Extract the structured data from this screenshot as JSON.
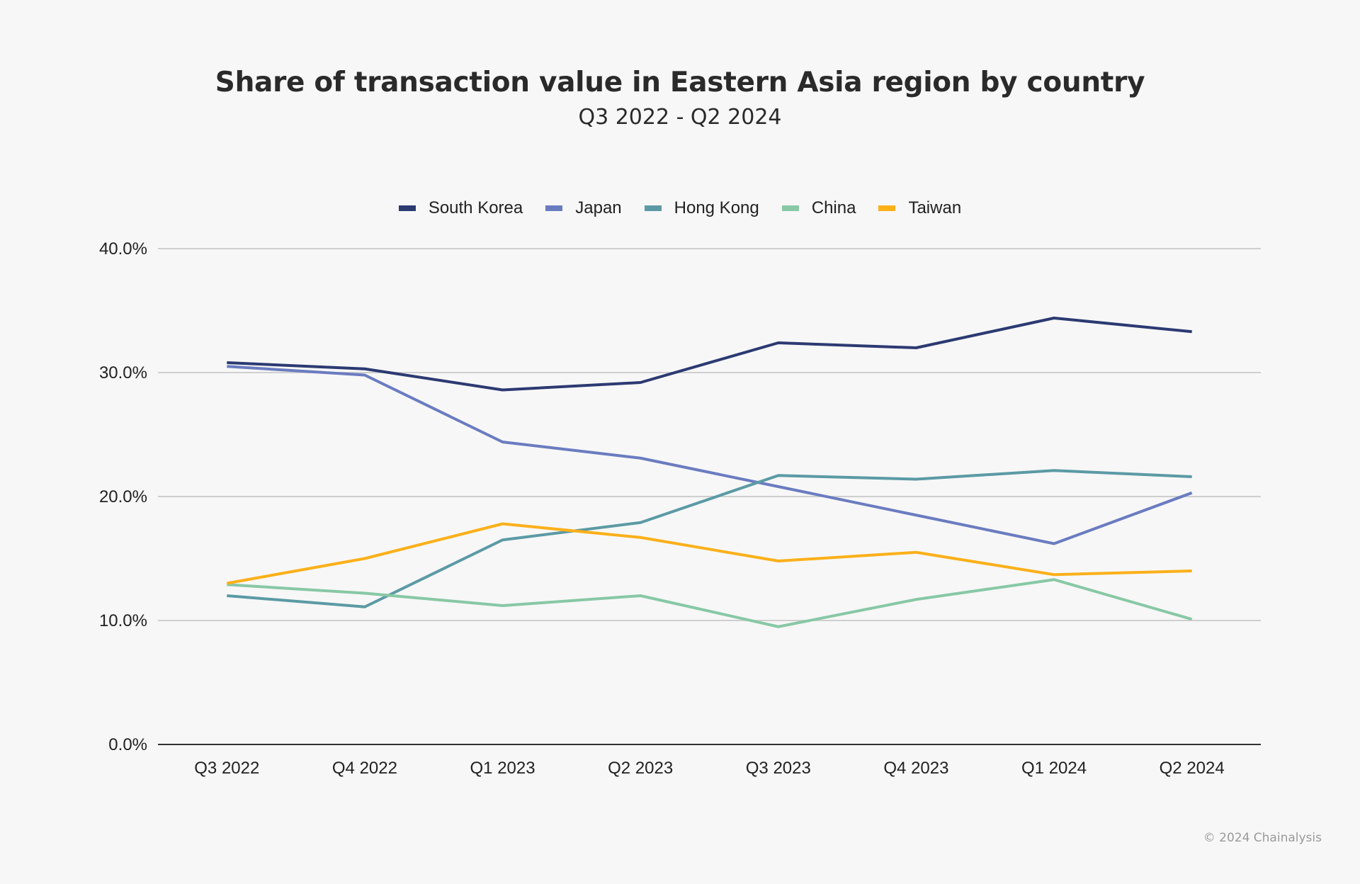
{
  "chart_data": {
    "type": "line",
    "title": "Share of transaction value in Eastern Asia region by country",
    "subtitle": "Q3 2022 - Q2 2024",
    "xlabel": "",
    "ylabel": "",
    "categories": [
      "Q3 2022",
      "Q4 2022",
      "Q1 2023",
      "Q2 2023",
      "Q3 2023",
      "Q4 2023",
      "Q1 2024",
      "Q2 2024"
    ],
    "ylim": [
      0,
      40
    ],
    "yticks": [
      0,
      10,
      20,
      30,
      40
    ],
    "ytick_labels": [
      "0.0%",
      "10.0%",
      "20.0%",
      "30.0%",
      "40.0%"
    ],
    "grid": true,
    "legend_position": "top-center",
    "series": [
      {
        "name": "South Korea",
        "color": "#2c3a72",
        "values": [
          30.8,
          30.3,
          28.6,
          29.2,
          32.4,
          32.0,
          34.4,
          33.3
        ]
      },
      {
        "name": "Japan",
        "color": "#6a7cc0",
        "values": [
          30.5,
          29.8,
          24.4,
          23.1,
          20.8,
          18.5,
          16.2,
          20.3
        ]
      },
      {
        "name": "Hong Kong",
        "color": "#5b9aa5",
        "values": [
          12.0,
          11.1,
          16.5,
          17.9,
          21.7,
          21.4,
          22.1,
          21.6
        ]
      },
      {
        "name": "China",
        "color": "#88c8a5",
        "values": [
          12.9,
          12.2,
          11.2,
          12.0,
          9.5,
          11.7,
          13.3,
          10.1
        ]
      },
      {
        "name": "Taiwan",
        "color": "#fbb01a",
        "values": [
          13.0,
          15.0,
          17.8,
          16.7,
          14.8,
          15.5,
          13.7,
          14.0
        ]
      }
    ]
  },
  "footer": {
    "copyright": "© 2024 Chainalysis"
  }
}
